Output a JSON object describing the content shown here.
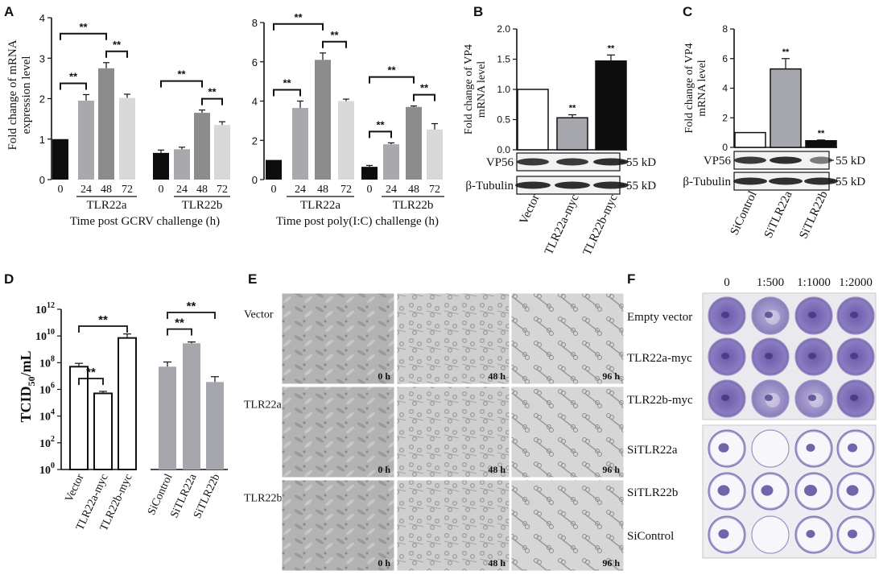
{
  "panels": {
    "A": "A",
    "B": "B",
    "C": "C",
    "D": "D",
    "E": "E",
    "F": "F"
  },
  "colors": {
    "black": "#0d0d0d",
    "dark_gray": "#8c8c8c",
    "mid_gray": "#a8a8ad",
    "light_gray": "#d8d8d8",
    "white": "#ffffff",
    "bar_gray": "#a6a6ad"
  },
  "chart_data": [
    {
      "id": "A1",
      "type": "bar",
      "ylabel": "Fold change of mRNA expression level",
      "xlabel": "Time post GCRV challenge (h)",
      "ylim": [
        0,
        4
      ],
      "yticks": [
        "0",
        "1",
        "2",
        "3",
        "4"
      ],
      "groups": [
        "TLR22a",
        "TLR22b"
      ],
      "categories": [
        "0",
        "24",
        "48",
        "72"
      ],
      "series": [
        {
          "group": "TLR22a",
          "values": [
            1.0,
            1.95,
            2.75,
            2.02
          ],
          "errors": [
            0,
            0.15,
            0.14,
            0.09
          ]
        },
        {
          "group": "TLR22b",
          "values": [
            0.66,
            0.75,
            1.65,
            1.35
          ],
          "errors": [
            0.07,
            0.05,
            0.07,
            0.08
          ]
        }
      ],
      "significance": [
        {
          "group": "TLR22a",
          "from": "0",
          "to": "24",
          "label": "**"
        },
        {
          "group": "TLR22a",
          "from": "0",
          "to": "48",
          "label": "**"
        },
        {
          "group": "TLR22a",
          "from": "48",
          "to": "72",
          "label": "**"
        },
        {
          "group": "TLR22b",
          "from": "0",
          "to": "48",
          "label": "**"
        },
        {
          "group": "TLR22b",
          "from": "48",
          "to": "72",
          "label": "**"
        }
      ]
    },
    {
      "id": "A2",
      "type": "bar",
      "xlabel": "Time post poly(I:C) challenge (h)",
      "ylim": [
        0,
        8
      ],
      "yticks": [
        "0",
        "2",
        "4",
        "6",
        "8"
      ],
      "groups": [
        "TLR22a",
        "TLR22b"
      ],
      "categories": [
        "0",
        "24",
        "48",
        "72"
      ],
      "series": [
        {
          "group": "TLR22a",
          "values": [
            1.0,
            3.65,
            6.1,
            4.0
          ],
          "errors": [
            0,
            0.35,
            0.35,
            0.1
          ]
        },
        {
          "group": "TLR22b",
          "values": [
            0.65,
            1.8,
            3.7,
            2.55
          ],
          "errors": [
            0.07,
            0.07,
            0.05,
            0.3
          ]
        }
      ],
      "significance": [
        {
          "group": "TLR22a",
          "from": "0",
          "to": "24",
          "label": "**"
        },
        {
          "group": "TLR22a",
          "from": "0",
          "to": "48",
          "label": "**"
        },
        {
          "group": "TLR22a",
          "from": "48",
          "to": "72",
          "label": "**"
        },
        {
          "group": "TLR22b",
          "from": "0",
          "to": "24",
          "label": "**"
        },
        {
          "group": "TLR22b",
          "from": "0",
          "to": "48",
          "label": "**"
        },
        {
          "group": "TLR22b",
          "from": "48",
          "to": "72",
          "label": "**"
        }
      ]
    },
    {
      "id": "B",
      "type": "bar",
      "ylabel": "Fold change of VP4 mRNA level",
      "ylim": [
        0,
        2
      ],
      "yticks": [
        "0.0",
        "0.5",
        "1.0",
        "1.5",
        "2.0"
      ],
      "categories": [
        "Vector",
        "TLR22a-myc",
        "TLR22b-myc"
      ],
      "values": [
        1.0,
        0.53,
        1.47
      ],
      "errors": [
        0,
        0.05,
        0.1
      ],
      "labels": [
        "",
        "**",
        "**"
      ],
      "blot_rows": [
        "VP56",
        "β-Tubulin"
      ],
      "markers": [
        "55 kD",
        "55 kD"
      ]
    },
    {
      "id": "C",
      "type": "bar",
      "ylabel": "Fold change of VP4 mRNA level",
      "ylim": [
        0,
        8
      ],
      "yticks": [
        "0",
        "2",
        "4",
        "6",
        "8"
      ],
      "categories": [
        "SiControl",
        "SiTLR22a",
        "SiTLR22b"
      ],
      "values": [
        1.0,
        5.3,
        0.45
      ],
      "errors": [
        0,
        0.7,
        0.05
      ],
      "labels": [
        "",
        "**",
        "**"
      ],
      "blot_rows": [
        "VP56",
        "β-Tubulin"
      ],
      "markers": [
        "55 kD",
        "55 kD"
      ]
    },
    {
      "id": "D",
      "type": "bar",
      "ylabel": "TCID50/mL",
      "scale": "log10",
      "yticks": [
        "10^0",
        "10^2",
        "10^4",
        "10^6",
        "10^8",
        "10^10",
        "10^12"
      ],
      "categories": [
        "Vector",
        "TLR22a-myc",
        "TLR22b-myc",
        "SiControl",
        "SiTLR22a",
        "SiTLR22b"
      ],
      "log_values": [
        7.7,
        5.7,
        9.85,
        7.7,
        9.45,
        6.55
      ],
      "log_errors": [
        0.25,
        0.15,
        0.3,
        0.35,
        0.1,
        0.4
      ],
      "significance": [
        {
          "from": "Vector",
          "to": "TLR22a-myc",
          "label": "**"
        },
        {
          "from": "Vector",
          "to": "TLR22b-myc",
          "label": "**"
        },
        {
          "from": "SiControl",
          "to": "SiTLR22a",
          "label": "**"
        },
        {
          "from": "SiControl",
          "to": "SiTLR22b",
          "label": "**"
        }
      ]
    }
  ],
  "panelE": {
    "rows": [
      "Vector",
      "TLR22a",
      "TLR22b"
    ],
    "times": [
      "0 h",
      "48 h",
      "96 h"
    ]
  },
  "panelF": {
    "columns": [
      "0",
      "1:500",
      "1:1000",
      "1:2000"
    ],
    "rows": [
      "Empty vector",
      "TLR22a-myc",
      "TLR22b-myc",
      "SiTLR22a",
      "SiTLR22b",
      "SiControl"
    ]
  }
}
